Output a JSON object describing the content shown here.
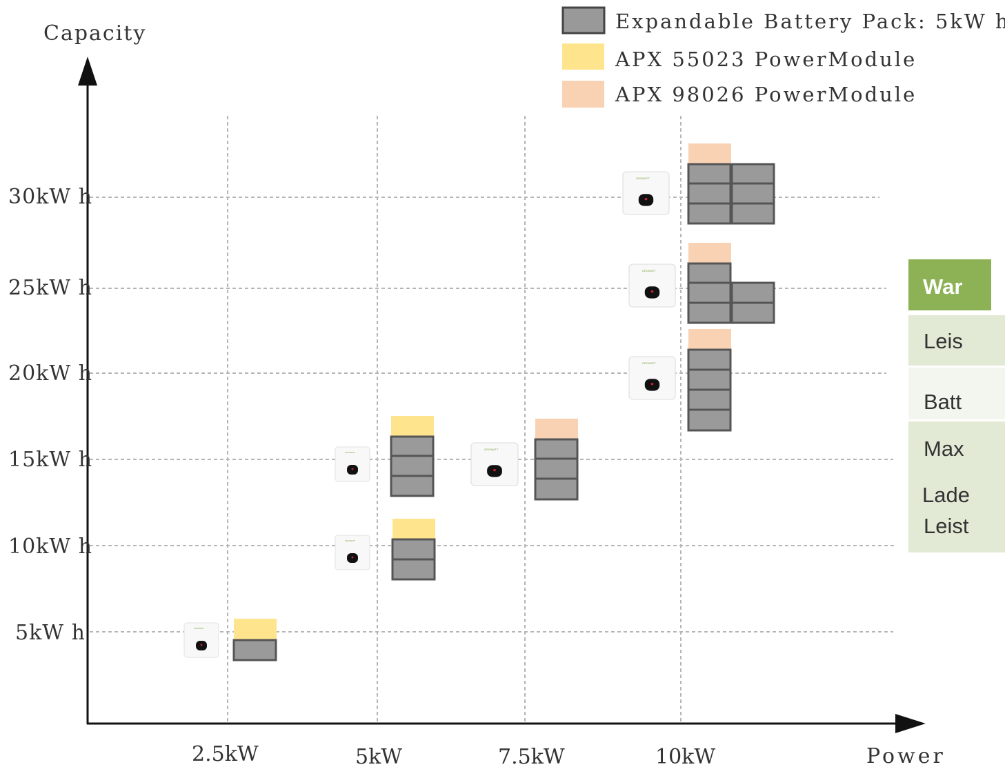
{
  "axes": {
    "y_label": "Capacity",
    "x_label": "Power",
    "y_ticks": [
      "30kW h",
      "25kW h",
      "20kW h",
      "15kW h",
      "10kW h",
      "5kW h"
    ],
    "x_ticks": [
      "2.5kW",
      "5kW",
      "7.5kW",
      "10kW"
    ]
  },
  "legend": [
    {
      "label": "Expandable Battery Pack: 5kW h",
      "color": "#999999"
    },
    {
      "label": "APX 55023 PowerModule",
      "color": "#ffe48e"
    },
    {
      "label": "APX 98026 PowerModule",
      "color": "#f9d2b4"
    }
  ],
  "colors": {
    "battery_fill": "#9a9a9a",
    "battery_border": "#555555",
    "module_55023": "#ffe48e",
    "module_98026": "#f9d2b4",
    "grid": "#b5b5b5",
    "table_header": "#8db255",
    "table_cell": "#e2ead5"
  },
  "configurations": [
    {
      "power": "2.5kW",
      "capacity": "5kW h",
      "battery_packs": 1,
      "power_module": "APX 55023 PowerModule"
    },
    {
      "power": "5kW",
      "capacity": "10kW h",
      "battery_packs": 2,
      "power_module": "APX 55023 PowerModule"
    },
    {
      "power": "5kW",
      "capacity": "15kW h",
      "battery_packs": 3,
      "power_module": "APX 55023 PowerModule"
    },
    {
      "power": "7.5kW",
      "capacity": "15kW h",
      "battery_packs": 3,
      "power_module": "APX 98026 PowerModule"
    },
    {
      "power": "10kW",
      "capacity": "20kW h",
      "battery_packs": 4,
      "power_module": "APX 98026 PowerModule"
    },
    {
      "power": "10kW",
      "capacity": "25kW h",
      "battery_packs": 5,
      "power_module": "APX 98026 PowerModule"
    },
    {
      "power": "10kW",
      "capacity": "30kW h",
      "battery_packs": 6,
      "power_module": "APX 98026 PowerModule"
    }
  ],
  "icons": {
    "inverter": "inverter-icon"
  },
  "side_table": {
    "header": "War",
    "rows": [
      "Leis",
      "Batt",
      "Max",
      "Lade",
      "Leist"
    ]
  }
}
